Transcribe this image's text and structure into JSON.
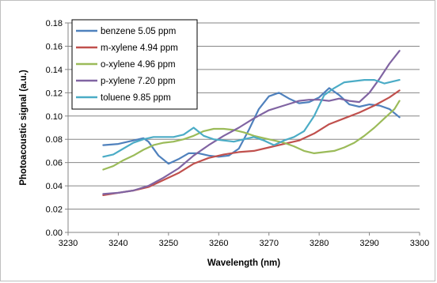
{
  "chart_data": {
    "type": "line",
    "title": "",
    "xlabel": "Wavelength (nm)",
    "ylabel": "Photoacoustic signal (a.u.)",
    "xlim": [
      3230,
      3300
    ],
    "ylim": [
      0,
      0.18
    ],
    "xticks": [
      3230,
      3240,
      3250,
      3260,
      3270,
      3280,
      3290,
      3300
    ],
    "yticks": [
      0,
      0.02,
      0.04,
      0.06,
      0.08,
      0.1,
      0.12,
      0.14,
      0.16,
      0.18
    ],
    "ytick_labels": [
      "0.00",
      "0.02",
      "0.04",
      "0.06",
      "0.08",
      "0.10",
      "0.12",
      "0.14",
      "0.16",
      "0.18"
    ],
    "grid": "horizontal",
    "legend_position": "top-left",
    "series": [
      {
        "name": "benzene 5.05 ppm",
        "color": "#4f81bd",
        "x": [
          3237,
          3240,
          3243,
          3245,
          3246,
          3248,
          3250,
          3252,
          3254,
          3256,
          3258,
          3260,
          3262,
          3264,
          3266,
          3268,
          3270,
          3272,
          3274,
          3276,
          3278,
          3280,
          3282,
          3284,
          3286,
          3288,
          3290,
          3292,
          3294,
          3296
        ],
        "y": [
          0.075,
          0.076,
          0.079,
          0.081,
          0.078,
          0.066,
          0.059,
          0.063,
          0.068,
          0.068,
          0.066,
          0.065,
          0.066,
          0.072,
          0.088,
          0.106,
          0.117,
          0.12,
          0.115,
          0.111,
          0.112,
          0.116,
          0.124,
          0.118,
          0.11,
          0.108,
          0.11,
          0.109,
          0.106,
          0.099
        ]
      },
      {
        "name": "m-xylene 4.94 ppm",
        "color": "#c0504d",
        "x": [
          3237,
          3240,
          3243,
          3246,
          3249,
          3252,
          3255,
          3258,
          3261,
          3264,
          3267,
          3270,
          3273,
          3276,
          3279,
          3282,
          3285,
          3288,
          3291,
          3294,
          3296
        ],
        "y": [
          0.032,
          0.034,
          0.036,
          0.039,
          0.045,
          0.051,
          0.059,
          0.064,
          0.067,
          0.069,
          0.07,
          0.073,
          0.076,
          0.079,
          0.085,
          0.093,
          0.098,
          0.103,
          0.109,
          0.116,
          0.122
        ]
      },
      {
        "name": "o-xylene 4.96 ppm",
        "color": "#9bbb59",
        "x": [
          3237,
          3239,
          3241,
          3243,
          3245,
          3247,
          3249,
          3251,
          3253,
          3255,
          3257,
          3259,
          3261,
          3263,
          3265,
          3267,
          3269,
          3271,
          3273,
          3275,
          3277,
          3279,
          3281,
          3283,
          3285,
          3287,
          3289,
          3291,
          3293,
          3295,
          3296
        ],
        "y": [
          0.054,
          0.057,
          0.062,
          0.066,
          0.071,
          0.075,
          0.077,
          0.078,
          0.08,
          0.083,
          0.087,
          0.089,
          0.089,
          0.088,
          0.086,
          0.083,
          0.081,
          0.079,
          0.077,
          0.074,
          0.07,
          0.068,
          0.069,
          0.07,
          0.073,
          0.077,
          0.083,
          0.09,
          0.098,
          0.106,
          0.113
        ]
      },
      {
        "name": "p-xylene 7.20 ppm",
        "color": "#8064a2",
        "x": [
          3237,
          3240,
          3243,
          3246,
          3249,
          3252,
          3255,
          3258,
          3261,
          3264,
          3267,
          3270,
          3273,
          3276,
          3278,
          3280,
          3282,
          3284,
          3286,
          3288,
          3290,
          3292,
          3294,
          3296
        ],
        "y": [
          0.033,
          0.034,
          0.036,
          0.04,
          0.047,
          0.055,
          0.066,
          0.075,
          0.083,
          0.09,
          0.098,
          0.105,
          0.109,
          0.113,
          0.114,
          0.114,
          0.113,
          0.115,
          0.113,
          0.112,
          0.12,
          0.132,
          0.145,
          0.156
        ]
      },
      {
        "name": "toluene 9.85 ppm",
        "color": "#4bacc6",
        "x": [
          3237,
          3239,
          3241,
          3243,
          3245,
          3247,
          3249,
          3251,
          3253,
          3255,
          3257,
          3259,
          3261,
          3263,
          3265,
          3267,
          3269,
          3271,
          3273,
          3275,
          3277,
          3279,
          3281,
          3283,
          3285,
          3287,
          3289,
          3291,
          3293,
          3296
        ],
        "y": [
          0.065,
          0.067,
          0.072,
          0.077,
          0.08,
          0.082,
          0.082,
          0.082,
          0.084,
          0.09,
          0.083,
          0.08,
          0.079,
          0.078,
          0.08,
          0.082,
          0.079,
          0.075,
          0.079,
          0.082,
          0.087,
          0.1,
          0.118,
          0.124,
          0.129,
          0.13,
          0.131,
          0.131,
          0.128,
          0.131
        ]
      }
    ]
  }
}
